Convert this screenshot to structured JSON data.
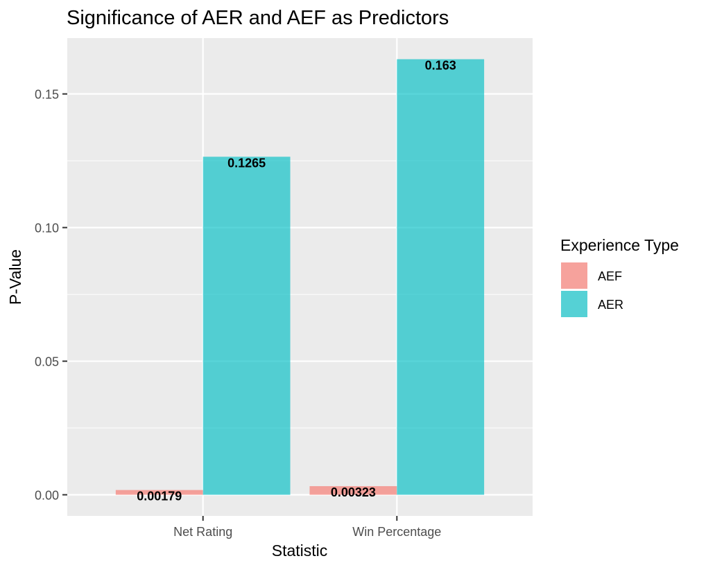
{
  "chart_data": {
    "type": "bar",
    "title": "Significance of AER and AEF as Predictors",
    "xlabel": "Statistic",
    "ylabel": "P-Value",
    "categories": [
      "Net Rating",
      "Win Percentage"
    ],
    "series": [
      {
        "name": "AEF",
        "values": [
          0.00179,
          0.00323
        ],
        "labels": [
          "0.00179",
          "0.00323"
        ],
        "color": "#F8766D"
      },
      {
        "name": "AER",
        "values": [
          0.1265,
          0.163
        ],
        "labels": [
          "0.1265",
          "0.163"
        ],
        "color": "#00BFC4"
      }
    ],
    "ylim": [
      -0.0079,
      0.1709
    ],
    "yticks": [
      0,
      0.05,
      0.1,
      0.15
    ],
    "ytick_labels": [
      "0.00",
      "0.05",
      "0.10",
      "0.15"
    ],
    "grid": true,
    "legend": {
      "title": "Experience Type",
      "position": "right"
    },
    "bar_opacity": 0.65,
    "panel_background": "#EBEBEB"
  }
}
